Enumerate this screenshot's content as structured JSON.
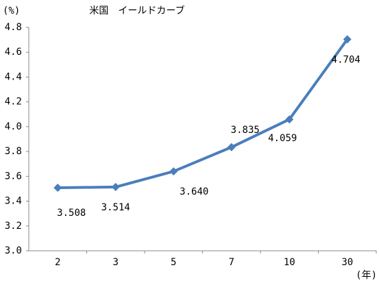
{
  "chart_data": {
    "type": "line",
    "title": "米国　イールドカーブ",
    "y_unit": "(%)",
    "x_unit": "(年)",
    "categories": [
      "2",
      "3",
      "5",
      "7",
      "10",
      "30"
    ],
    "series": [
      {
        "color": "#4a7ebb",
        "values": [
          3.508,
          3.514,
          3.64,
          3.835,
          4.059,
          4.704
        ],
        "value_labels": [
          "3.508",
          "3.514",
          "3.640",
          "3.835",
          "4.059",
          "4.704"
        ]
      }
    ],
    "ylim": [
      3.0,
      4.8
    ],
    "yticks": [
      {
        "value": 3.0,
        "label": "3.0"
      },
      3.2,
      3.4,
      3.6,
      3.8,
      {
        "value": 4.0,
        "label": "4.0"
      },
      4.2,
      4.4,
      4.6,
      4.8
    ],
    "grid": false
  }
}
